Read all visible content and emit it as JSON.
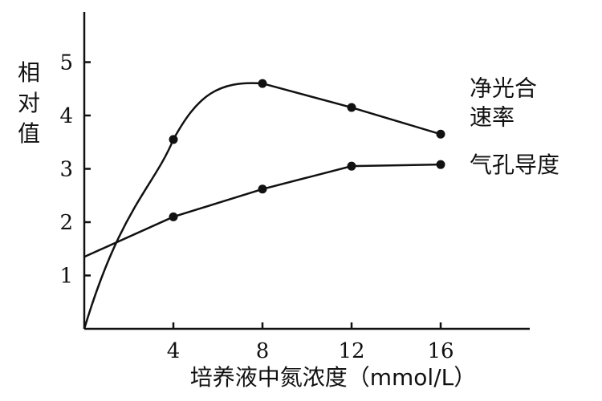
{
  "chart_data": {
    "type": "line",
    "title": "",
    "xlabel": "培养液中氮浓度（mmol/L）",
    "ylabel": "相对值",
    "xlim": [
      0,
      20
    ],
    "ylim": [
      0,
      5.8
    ],
    "x_ticks": [
      4,
      8,
      12,
      16
    ],
    "y_ticks": [
      1,
      2,
      3,
      4,
      5
    ],
    "grid": false,
    "legend": "none",
    "series": [
      {
        "name": "净光合速率",
        "label_lines": [
          "净光合",
          "速率"
        ],
        "x": [
          0,
          4,
          8,
          12,
          16
        ],
        "y": [
          0,
          3.55,
          4.6,
          4.15,
          3.65
        ],
        "markers_at": [
          4,
          8,
          12,
          16
        ],
        "smooth_segment": [
          0,
          8
        ]
      },
      {
        "name": "气孔导度",
        "label_lines": [
          "气孔导度"
        ],
        "x": [
          0,
          4,
          8,
          12,
          16
        ],
        "y": [
          1.35,
          2.1,
          2.62,
          3.05,
          3.08
        ],
        "markers_at": [
          4,
          8,
          12,
          16
        ],
        "smooth_segment": null
      }
    ]
  }
}
